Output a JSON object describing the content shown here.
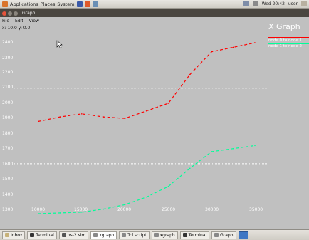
{
  "system_bar": {
    "menus": [
      "Applications",
      "Places",
      "System"
    ],
    "clock": "Wed 20:42",
    "user": "user"
  },
  "window": {
    "title": "Graph"
  },
  "menubar": {
    "items": [
      "File",
      "Edit",
      "View"
    ]
  },
  "info_text": "x: 10.0 y: 0.0",
  "graph": {
    "title": "X Graph",
    "legend": [
      {
        "label": "node 0 to node 1",
        "color": "#ff0000"
      },
      {
        "label": "node 1 to node 2",
        "color": "#00ff99"
      }
    ],
    "y_ticks": [
      "2400",
      "2300",
      "2200",
      "2100",
      "2000",
      "1900",
      "1800",
      "1700",
      "1600",
      "1500",
      "1400",
      "1300"
    ],
    "x_ticks": [
      "10000",
      "15000",
      "20000",
      "25000",
      "30000",
      "35000"
    ]
  },
  "chart_data": {
    "type": "line",
    "title": "X Graph",
    "x_range": [
      9000,
      36000
    ],
    "y_range": [
      1250,
      2430
    ],
    "grid": "horizontal dotted lines",
    "legend_position": "top-right",
    "series": [
      {
        "name": "node 0 to node 1",
        "color": "#ff0000",
        "points": [
          [
            10000,
            1880
          ],
          [
            12500,
            1910
          ],
          [
            15000,
            1930
          ],
          [
            17500,
            1910
          ],
          [
            20000,
            1900
          ],
          [
            22500,
            1950
          ],
          [
            25000,
            2000
          ],
          [
            27500,
            2190
          ],
          [
            30000,
            2340
          ],
          [
            32500,
            2370
          ],
          [
            35000,
            2400
          ]
        ]
      },
      {
        "name": "node 1 to node 2",
        "color": "#00ff99",
        "points": [
          [
            10000,
            1270
          ],
          [
            12500,
            1275
          ],
          [
            15000,
            1280
          ],
          [
            17500,
            1300
          ],
          [
            20000,
            1330
          ],
          [
            22500,
            1380
          ],
          [
            25000,
            1450
          ],
          [
            27500,
            1570
          ],
          [
            30000,
            1680
          ],
          [
            32500,
            1700
          ],
          [
            35000,
            1720
          ]
        ]
      }
    ]
  },
  "taskbar": {
    "tasks": [
      "Inbox",
      "Terminal",
      "ns-2 sim",
      "xgraph",
      "Tcl script",
      "xgraph",
      "Terminal",
      "Graph"
    ]
  }
}
